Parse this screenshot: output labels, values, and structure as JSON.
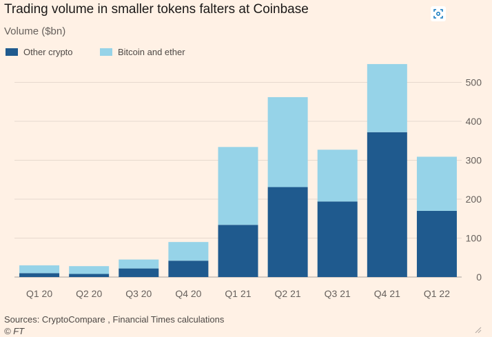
{
  "title": "Trading volume in smaller tokens falters at Coinbase",
  "subtitle": "Volume ($bn)",
  "legend": [
    {
      "label": "Other crypto",
      "color": "#1f5a8e"
    },
    {
      "label": "Bitcoin and ether",
      "color": "#96d3e8"
    }
  ],
  "focus_icon": "focus-icon",
  "source": "Sources: CryptoCompare , Financial Times calculations",
  "copyright": "© FT",
  "chart_data": {
    "type": "bar",
    "stacked": true,
    "categories": [
      "Q1 20",
      "Q2 20",
      "Q3 20",
      "Q4 20",
      "Q1 21",
      "Q2 21",
      "Q3 21",
      "Q4 21",
      "Q1 22"
    ],
    "series": [
      {
        "name": "Other crypto",
        "color": "#1f5a8e",
        "values": [
          10,
          8,
          22,
          42,
          134,
          231,
          194,
          372,
          170
        ]
      },
      {
        "name": "Bitcoin and ether",
        "color": "#96d3e8",
        "values": [
          20,
          20,
          23,
          48,
          200,
          231,
          133,
          175,
          139
        ]
      }
    ],
    "ylabel": "Volume ($bn)",
    "ylim": [
      0,
      500
    ],
    "yticks": [
      0,
      100,
      200,
      300,
      400,
      500
    ],
    "y_axis_position": "right",
    "grid": true,
    "legend_position": "top-left"
  }
}
